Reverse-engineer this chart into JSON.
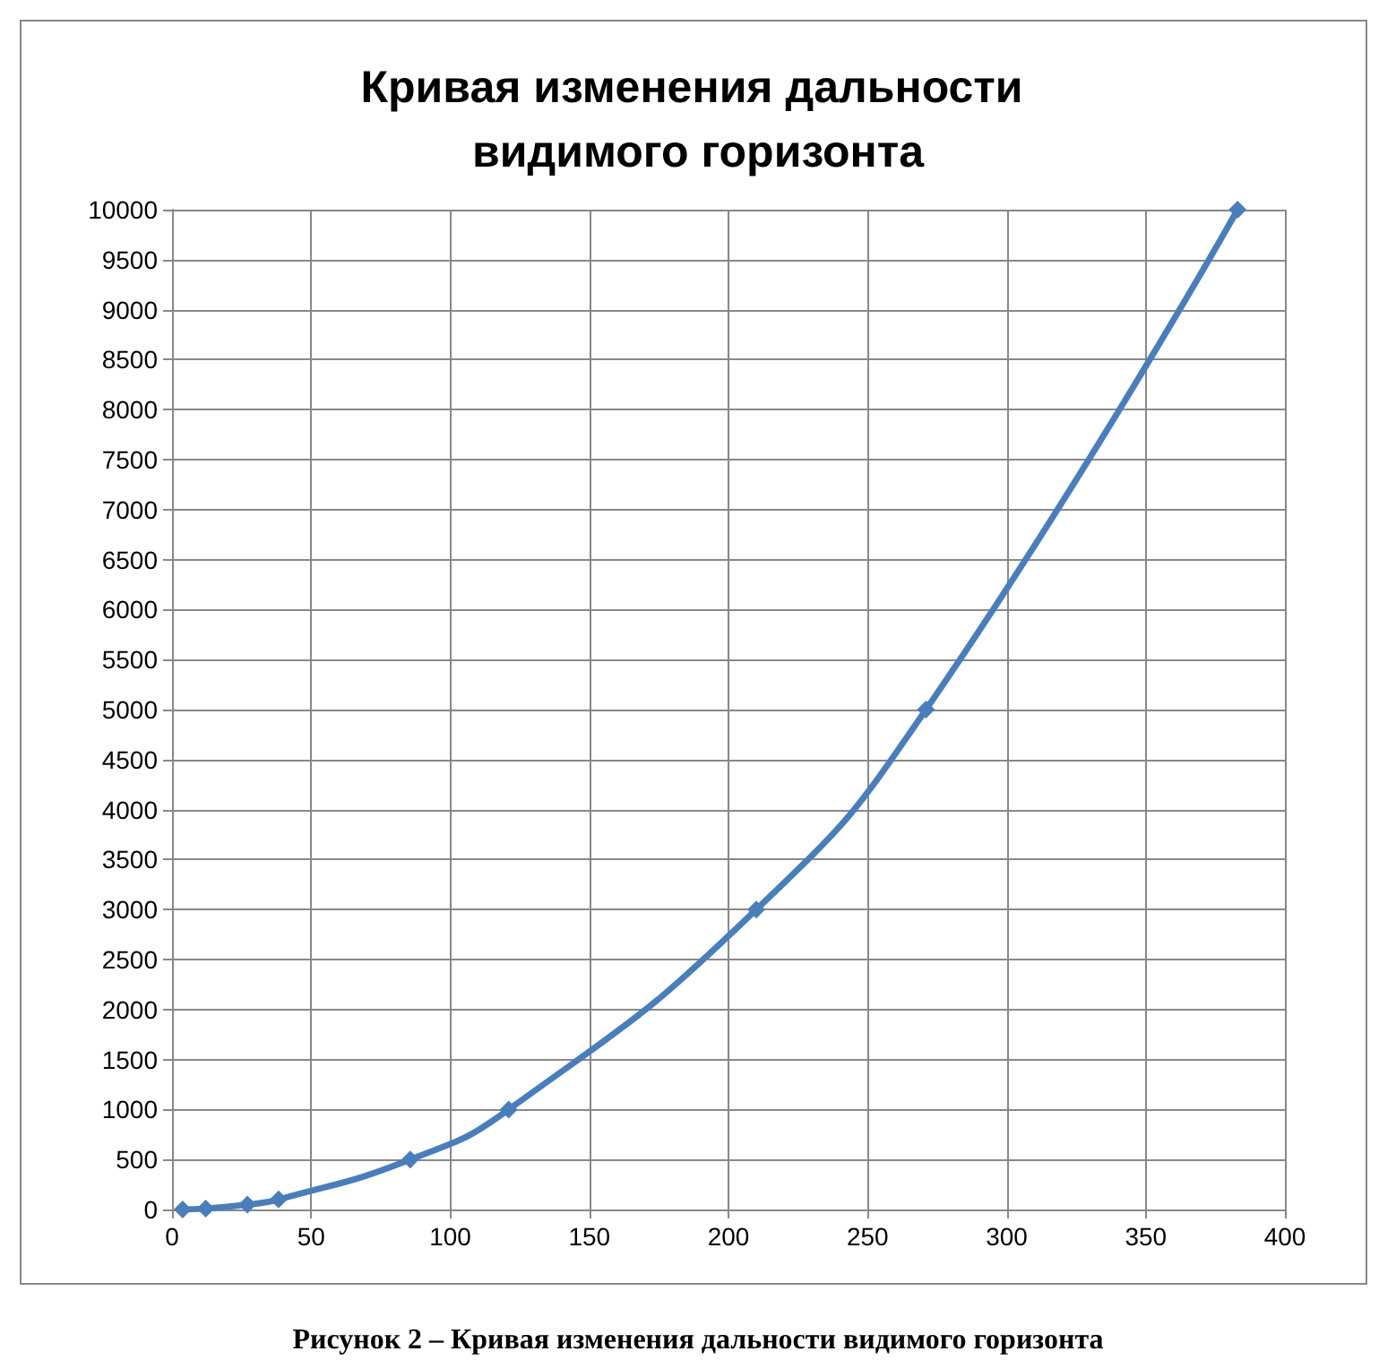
{
  "chart_data": {
    "type": "line",
    "title": "Кривая изменения дальности видимого горизонта",
    "annotations": [
      "Рисунок 2 – Кривая изменения дальности видимого горизонта"
    ],
    "x": [
      3.8,
      12.1,
      27.1,
      38.3,
      85.6,
      121,
      210,
      271,
      383
    ],
    "series": [
      {
        "color": "#4a7ebb",
        "values": [
          0,
          10,
          50,
          100,
          500,
          1000,
          3000,
          5000,
          10000
        ]
      }
    ],
    "xlim": [
      0,
      400
    ],
    "xticks": [
      0,
      50,
      100,
      150,
      200,
      250,
      300,
      350,
      400
    ],
    "ylim": [
      0,
      10000
    ],
    "yticks": [
      0,
      500,
      1000,
      1500,
      2000,
      2500,
      3000,
      3500,
      4000,
      4500,
      5000,
      5500,
      6000,
      6500,
      7000,
      7500,
      8000,
      8500,
      9000,
      9500,
      10000
    ],
    "grid": true,
    "marker": "diamond",
    "line_style": "solid"
  }
}
